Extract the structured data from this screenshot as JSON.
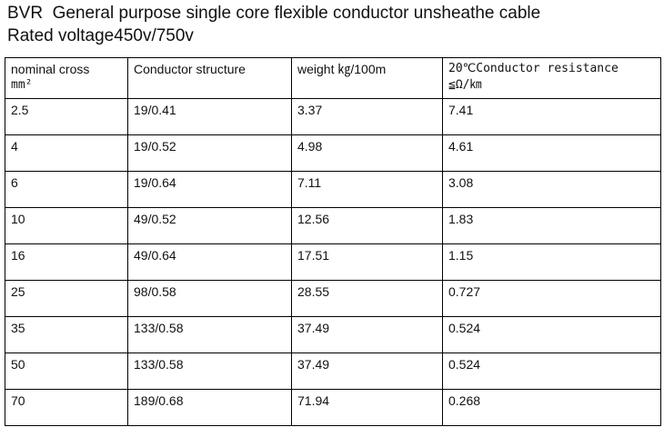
{
  "heading": {
    "line1": "BVR  General purpose single core flexible conductor unsheathe cable",
    "line2": "Rated voltage450v/750v"
  },
  "table": {
    "headers": [
      {
        "line1": "nominal cross",
        "line2": "mm²"
      },
      {
        "line1": "Conductor structure",
        "line2": ""
      },
      {
        "line1": "weight ㎏/100m",
        "line2": ""
      },
      {
        "line1": "20℃Conductor resistance",
        "line2": "≦Ω/㎞"
      }
    ],
    "rows": [
      [
        "2.5",
        "19/0.41",
        "3.37",
        "7.41"
      ],
      [
        "4",
        "19/0.52",
        "4.98",
        "4.61"
      ],
      [
        "6",
        "19/0.64",
        "7.11",
        "3.08"
      ],
      [
        "10",
        "49/0.52",
        "12.56",
        "1.83"
      ],
      [
        "16",
        "49/0.64",
        "17.51",
        "1.15"
      ],
      [
        "25",
        "98/0.58",
        "28.55",
        "0.727"
      ],
      [
        "35",
        "133/0.58",
        "37.49",
        "0.524"
      ],
      [
        "50",
        "133/0.58",
        "37.49",
        "0.524"
      ],
      [
        "70",
        "189/0.68",
        "71.94",
        "0.268"
      ]
    ]
  }
}
